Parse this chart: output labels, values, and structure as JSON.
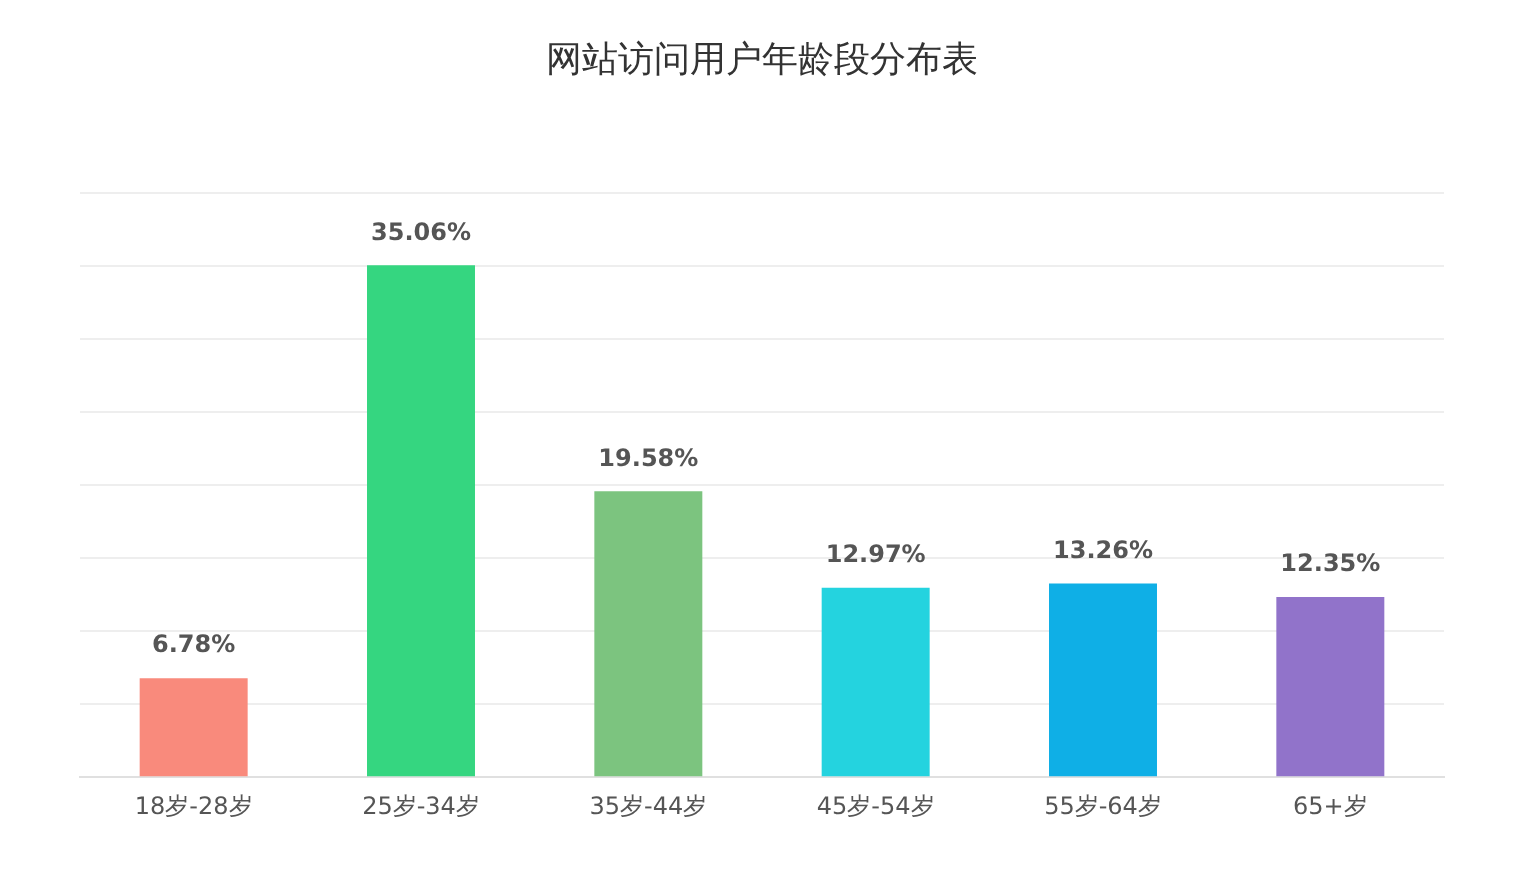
{
  "chart_data": {
    "type": "bar",
    "title": "网站访问用户年龄段分布表",
    "categories": [
      "18岁-28岁",
      "25岁-34岁",
      "35岁-44岁",
      "45岁-54岁",
      "55岁-64岁",
      "65+岁"
    ],
    "values": [
      6.78,
      35.06,
      19.58,
      12.97,
      13.26,
      12.35
    ],
    "value_labels": [
      "6.78%",
      "35.06%",
      "19.58%",
      "12.97%",
      "13.26%",
      "12.35%"
    ],
    "colors": [
      "#f98a7c",
      "#35d680",
      "#7cc47f",
      "#24d3df",
      "#0fafe6",
      "#9173ca"
    ],
    "ylim": [
      0,
      40
    ],
    "yticks": [
      {
        "value": 0,
        "label": null
      },
      {
        "value": 5,
        "label": null
      },
      {
        "value": 10,
        "label": null
      },
      {
        "value": 15,
        "label": null
      },
      {
        "value": 20,
        "label": null
      },
      {
        "value": 25,
        "label": null
      },
      {
        "value": 30,
        "label": null
      },
      {
        "value": 35,
        "label": null
      },
      {
        "value": 40,
        "label": null
      }
    ],
    "tick_labels": "x",
    "grid": "y",
    "legend": false
  }
}
